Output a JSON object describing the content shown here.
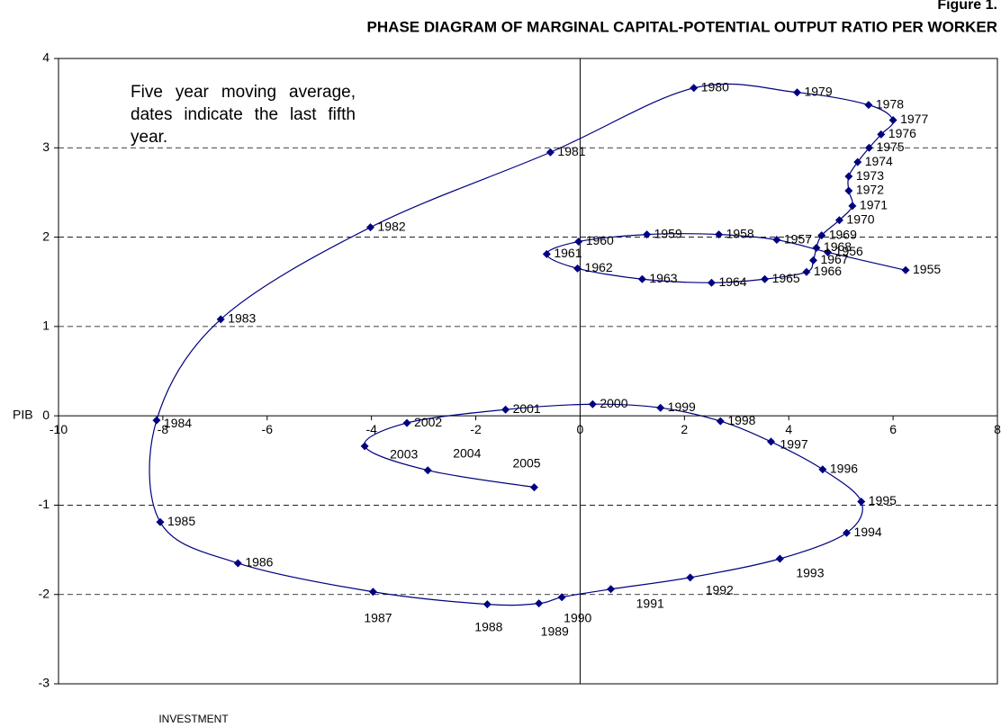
{
  "chart_data": {
    "type": "scatter",
    "figure_label": "Figure 1.",
    "title": "PHASE DIAGRAM OF MARGINAL CAPITAL-POTENTIAL OUTPUT RATIO PER WORKER",
    "annotation": "Five year moving average, dates indicate the last fifth year.",
    "x_label": "INVESTMENT",
    "y_label": "PIB",
    "xlim": [
      -10,
      8
    ],
    "xticks": [
      -10,
      -8,
      -6,
      -4,
      -2,
      0,
      2,
      4,
      6,
      8
    ],
    "ylim": [
      -3,
      4
    ],
    "yticks": [
      -3,
      -2,
      -1,
      0,
      1,
      2,
      3,
      4
    ],
    "grid": true,
    "series": [
      {
        "color": "#000080",
        "x": [
          6.24,
          4.75,
          3.77,
          2.66,
          1.28,
          -0.03,
          -0.64,
          -0.05,
          1.19,
          2.52,
          3.54,
          4.34,
          4.47,
          4.53,
          4.63,
          4.97,
          5.22,
          5.15,
          5.15,
          5.32,
          5.54,
          5.77,
          6.0,
          5.53,
          4.16,
          2.18,
          -0.57,
          -4.02,
          -6.89,
          -8.12,
          -8.05,
          -6.56,
          -3.97,
          -1.78,
          -0.79,
          -0.35,
          0.59,
          2.11,
          3.83,
          5.11,
          5.39,
          4.65,
          3.66,
          2.69,
          1.54,
          0.24,
          -1.43,
          -3.32,
          -4.13,
          -2.92,
          -0.88
        ],
        "values": [
          1.63,
          1.83,
          1.97,
          2.03,
          2.03,
          1.95,
          1.81,
          1.65,
          1.53,
          1.49,
          1.53,
          1.61,
          1.74,
          1.88,
          2.02,
          2.19,
          2.35,
          2.52,
          2.68,
          2.84,
          3.0,
          3.15,
          3.31,
          3.48,
          3.62,
          3.67,
          2.95,
          2.11,
          1.08,
          -0.05,
          -1.19,
          -1.65,
          -1.97,
          -2.11,
          -2.1,
          -2.03,
          -1.94,
          -1.81,
          -1.6,
          -1.31,
          -0.96,
          -0.6,
          -0.29,
          -0.06,
          0.09,
          0.13,
          0.07,
          -0.08,
          -0.34,
          -0.61,
          -0.8
        ],
        "point_labels": [
          "1955",
          "1956",
          "1957",
          "1958",
          "1959",
          "1960",
          "1961",
          "1962",
          "1963",
          "1964",
          "1965",
          "1966",
          "1967",
          "1968",
          "1969",
          "1970",
          "1971",
          "1972",
          "1973",
          "1974",
          "1975",
          "1976",
          "1977",
          "1978",
          "1979",
          "1980",
          "1981",
          "1982",
          "1983",
          "1984",
          "1985",
          "1986",
          "1987",
          "1988",
          "1989",
          "1990",
          "1991",
          "1992",
          "1993",
          "1994",
          "1995",
          "1996",
          "1997",
          "1998",
          "1999",
          "2000",
          "2001",
          "2002",
          "2003",
          "2004",
          "2005"
        ]
      }
    ]
  }
}
